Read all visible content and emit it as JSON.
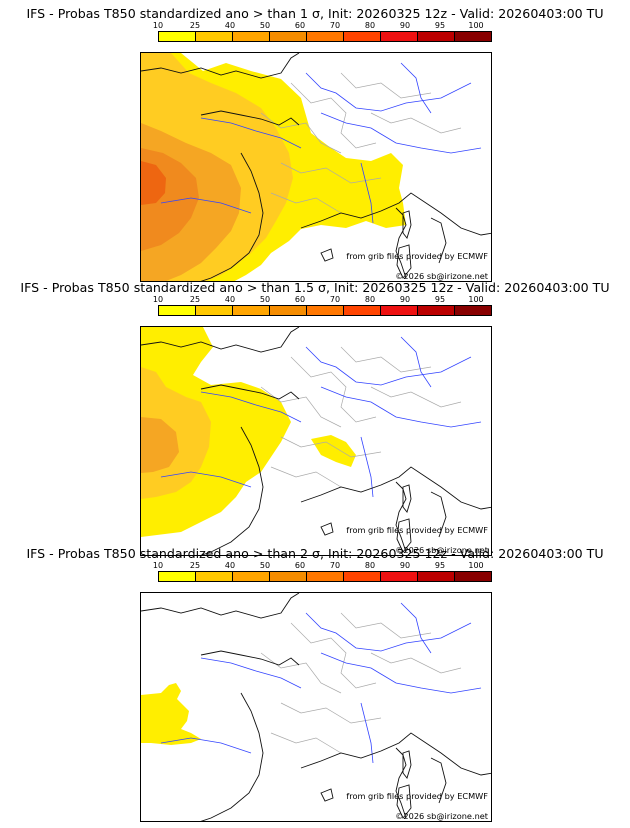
{
  "colorbar": {
    "labels": [
      "10",
      "25",
      "40",
      "50",
      "60",
      "70",
      "80",
      "90",
      "95",
      "100"
    ],
    "colors": [
      "#ffff00",
      "#ffc800",
      "#ffa500",
      "#f58c00",
      "#ff7700",
      "#ff4400",
      "#ee1111",
      "#bb0000",
      "#880000",
      "#550000"
    ]
  },
  "map_colors": {
    "prob_10": "#ffee00",
    "prob_25": "#ffcc22",
    "prob_40": "#f5a623",
    "prob_50": "#f08a1e",
    "prob_60": "#ee6611",
    "coast": "#111111",
    "rivers": "#3344ff",
    "borders": "#aaaaaa"
  },
  "panels": [
    {
      "title": "IFS - Probas T850  standardized ano > than 1 σ, Init: 20260325 12z - Valid: 20260403:00 TU",
      "credit_source": "from grib files provided by ECMWF",
      "credit_copyright": "©2026 sb@irizone.net"
    },
    {
      "title": "IFS - Probas T850  standardized ano > than 1.5 σ, Init: 20260325 12z - Valid: 20260403:00 TU",
      "credit_source": "from grib files provided by ECMWF",
      "credit_copyright": "©2026 sb@irizone.net"
    },
    {
      "title": "IFS - Probas T850  standardized ano > than 2 σ, Init: 20260325 12z - Valid: 20260403:00 TU",
      "credit_source": "from grib files provided by ECMWF",
      "credit_copyright": "©2026 sb@irizone.net"
    }
  ]
}
